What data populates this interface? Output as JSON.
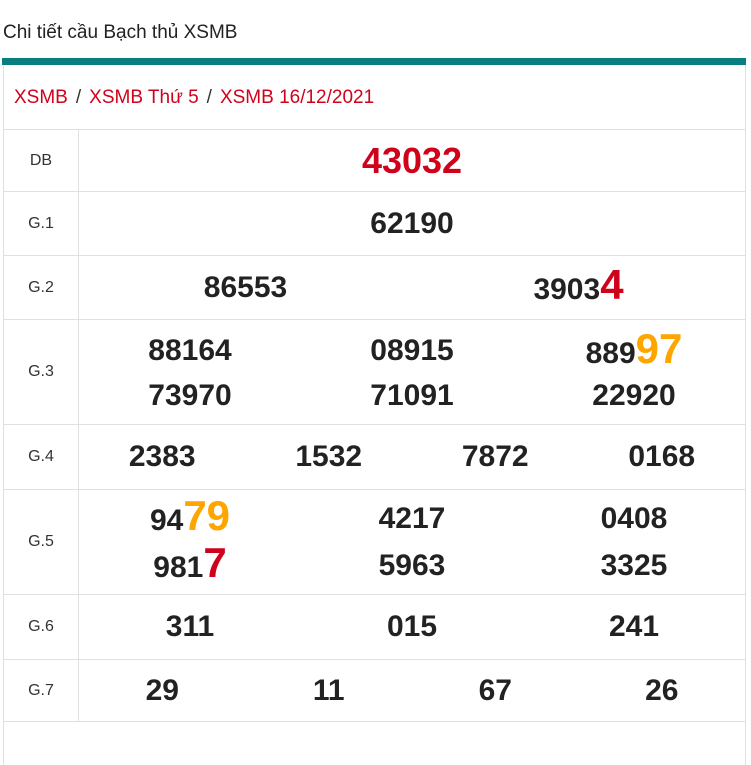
{
  "page_title": "Chi tiết cầu Bạch thủ XSMB",
  "breadcrumb": [
    "XSMB",
    "XSMB Thứ 5",
    "XSMB 16/12/2021"
  ],
  "breadcrumb_separator": "/",
  "colors": {
    "accent_bar": "#077f80",
    "red": "#d0021b",
    "orange": "#ffa500",
    "text": "#222222"
  },
  "prizes": [
    {
      "label": "DB",
      "cols": 1,
      "numbers": [
        {
          "main": "43032",
          "hl": "",
          "special": true
        }
      ]
    },
    {
      "label": "G.1",
      "cols": 1,
      "numbers": [
        {
          "main": "62190",
          "hl": ""
        }
      ]
    },
    {
      "label": "G.2",
      "cols": 2,
      "numbers": [
        {
          "main": "86553",
          "hl": ""
        },
        {
          "main": "3903",
          "hl": "4",
          "hl_color": "red"
        }
      ]
    },
    {
      "label": "G.3",
      "cols": 3,
      "numbers": [
        {
          "main": "88164",
          "hl": ""
        },
        {
          "main": "08915",
          "hl": ""
        },
        {
          "main": "889",
          "hl": "97",
          "hl_color": "orange"
        },
        {
          "main": "73970",
          "hl": ""
        },
        {
          "main": "71091",
          "hl": ""
        },
        {
          "main": "22920",
          "hl": ""
        }
      ]
    },
    {
      "label": "G.4",
      "cols": 4,
      "numbers": [
        {
          "main": "2383",
          "hl": ""
        },
        {
          "main": "1532",
          "hl": ""
        },
        {
          "main": "7872",
          "hl": ""
        },
        {
          "main": "0168",
          "hl": ""
        }
      ]
    },
    {
      "label": "G.5",
      "cols": 3,
      "numbers": [
        {
          "main": "94",
          "hl": "79",
          "hl_color": "orange"
        },
        {
          "main": "4217",
          "hl": ""
        },
        {
          "main": "0408",
          "hl": ""
        },
        {
          "main": "981",
          "hl": "7",
          "hl_color": "red"
        },
        {
          "main": "5963",
          "hl": ""
        },
        {
          "main": "3325",
          "hl": ""
        }
      ]
    },
    {
      "label": "G.6",
      "cols": 3,
      "numbers": [
        {
          "main": "311",
          "hl": ""
        },
        {
          "main": "015",
          "hl": ""
        },
        {
          "main": "241",
          "hl": ""
        }
      ]
    },
    {
      "label": "G.7",
      "cols": 4,
      "numbers": [
        {
          "main": "29",
          "hl": ""
        },
        {
          "main": "11",
          "hl": ""
        },
        {
          "main": "67",
          "hl": ""
        },
        {
          "main": "26",
          "hl": ""
        }
      ]
    }
  ]
}
